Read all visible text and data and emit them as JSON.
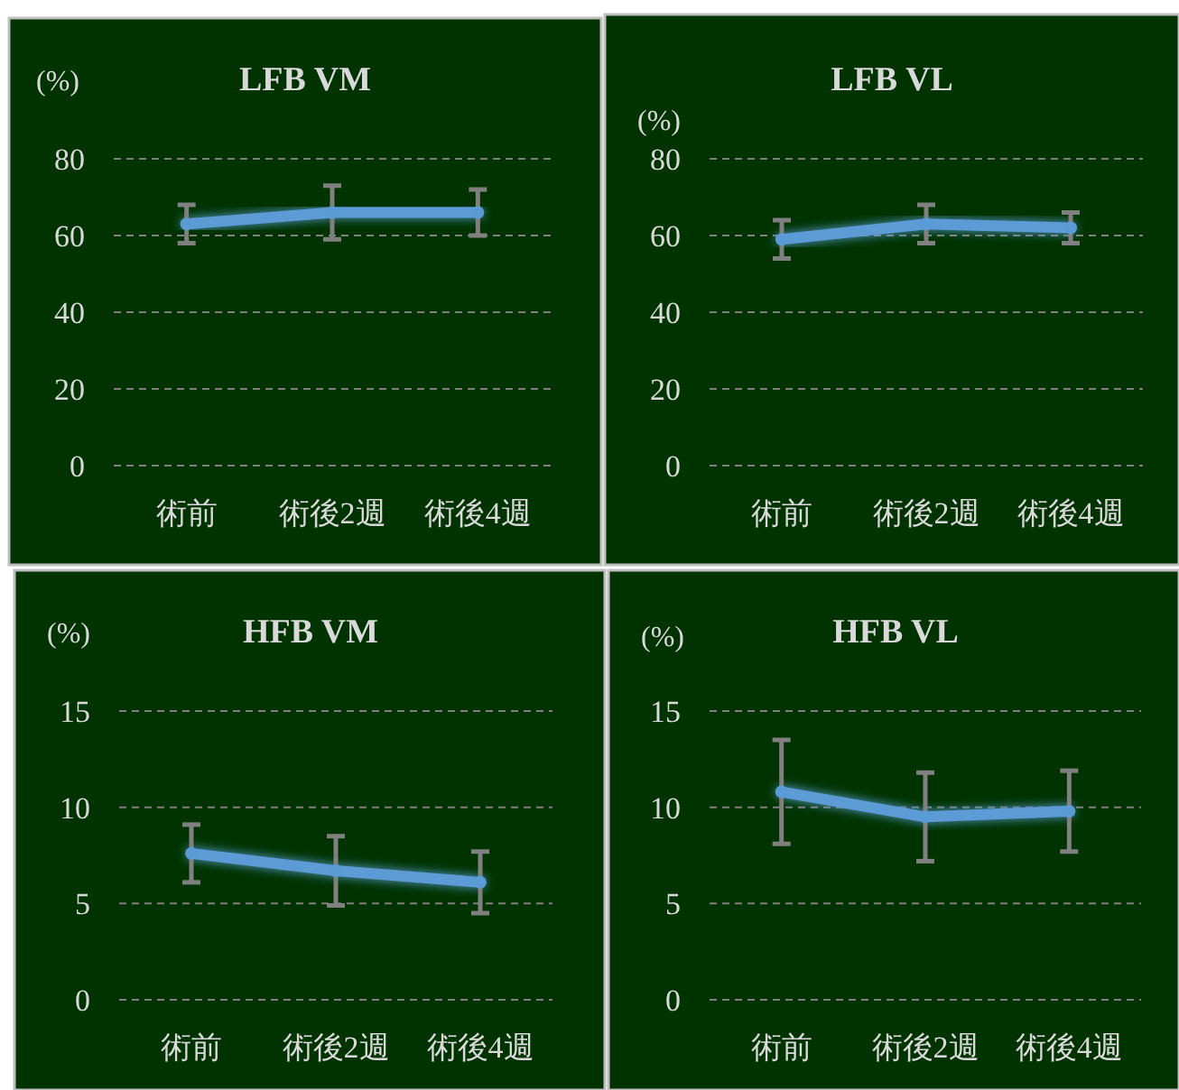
{
  "chart_data": [
    {
      "type": "line",
      "title": "LFB  VM",
      "ylabel": "(%)",
      "categories": [
        "術前",
        "術後2週",
        "術後4週"
      ],
      "series": [
        {
          "color": "#5b9bd5",
          "values": [
            63,
            66,
            66
          ],
          "errors": [
            5,
            7,
            6
          ]
        }
      ],
      "ylim": [
        0,
        80
      ],
      "yticks": [
        0,
        20,
        40,
        60,
        80
      ],
      "grid": "y",
      "marker": "circle"
    },
    {
      "type": "line",
      "title": "LFB  VL",
      "ylabel": "(%)",
      "categories": [
        "術前",
        "術後2週",
        "術後4週"
      ],
      "series": [
        {
          "color": "#5b9bd5",
          "values": [
            59,
            63,
            62
          ],
          "errors": [
            5,
            5,
            4
          ]
        }
      ],
      "ylim": [
        0,
        80
      ],
      "yticks": [
        0,
        20,
        40,
        60,
        80
      ],
      "grid": "y",
      "marker": "circle"
    },
    {
      "type": "line",
      "title": "HFB  VM",
      "ylabel": "(%)",
      "categories": [
        "術前",
        "術後2週",
        "術後4週"
      ],
      "series": [
        {
          "color": "#5b9bd5",
          "values": [
            7.6,
            6.7,
            6.1
          ],
          "errors": [
            1.5,
            1.8,
            1.6
          ]
        }
      ],
      "ylim": [
        0,
        15
      ],
      "yticks": [
        0,
        5,
        10,
        15
      ],
      "grid": "y",
      "marker": "circle"
    },
    {
      "type": "line",
      "title": "HFB  VL",
      "ylabel": "(%)",
      "categories": [
        "術前",
        "術後2週",
        "術後4週"
      ],
      "series": [
        {
          "color": "#5b9bd5",
          "values": [
            10.8,
            9.5,
            9.8
          ],
          "errors": [
            2.7,
            2.3,
            2.1
          ]
        }
      ],
      "ylim": [
        0,
        15
      ],
      "yticks": [
        0,
        5,
        10,
        15
      ],
      "grid": "y",
      "marker": "circle"
    }
  ]
}
